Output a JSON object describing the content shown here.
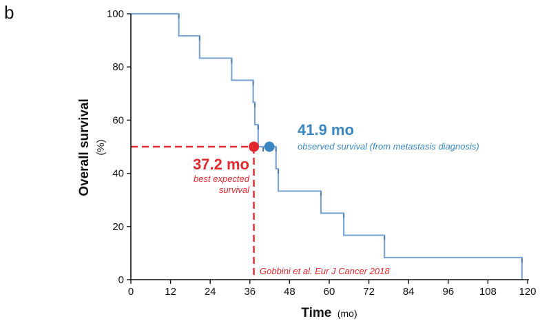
{
  "panel_label": "b",
  "colors": {
    "observed": "#3a86c0",
    "expected": "#e0282e",
    "km_line": "#7ea6d3",
    "axis": "#111111"
  },
  "chart_data": {
    "type": "line",
    "step": true,
    "xlabel": "Time",
    "xlabel_unit": "(mo)",
    "ylabel": "Overall survival",
    "ylabel_unit": "(%)",
    "xlim": [
      0,
      120
    ],
    "ylim": [
      0,
      100
    ],
    "xticks": [
      0,
      12,
      24,
      36,
      48,
      60,
      72,
      84,
      96,
      108,
      120
    ],
    "yticks": [
      0,
      20,
      40,
      60,
      80,
      100
    ],
    "grid": false,
    "series": [
      {
        "x": [
          0,
          14.5,
          20.8,
          30.5,
          37.0,
          37.5,
          38.5,
          40.0,
          43.9,
          44.6,
          57.5,
          64.4,
          76.7,
          118.3,
          118.3
        ],
        "y": [
          100,
          91.7,
          83.3,
          75.0,
          66.7,
          58.3,
          50.0,
          50.0,
          41.7,
          33.3,
          25.0,
          16.7,
          8.3,
          0,
          0
        ]
      }
    ],
    "annotations": {
      "observed": {
        "x": 41.9,
        "y": 50,
        "value": "41.9 mo",
        "label": "observed survival (from metastasis diagnosis)"
      },
      "expected": {
        "x": 37.2,
        "y": 50,
        "value": "37.2 mo",
        "label_line1": "best expected",
        "label_line2": "survival",
        "source": "Gobbini et al. Eur J Cancer 2018"
      }
    }
  }
}
